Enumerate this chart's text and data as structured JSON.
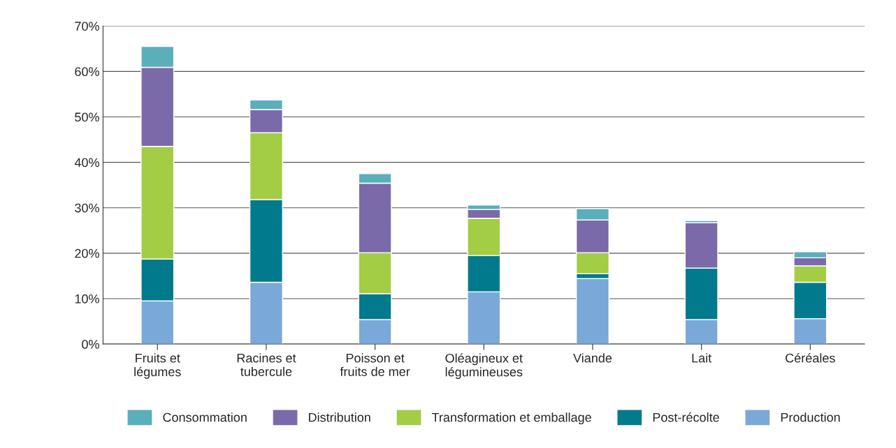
{
  "chart_data": {
    "type": "bar",
    "stacked": true,
    "categories": [
      "Fruits et\nlégumes",
      "Racines et\ntubercule",
      "Poisson et\nfruits de mer",
      "Oléagineux et\nlégumineuses",
      "Viande",
      "Lait",
      "Céréales"
    ],
    "series": [
      {
        "name": "Production",
        "color": "#7aa8d8",
        "values": [
          9.5,
          13.6,
          5.4,
          11.5,
          14.4,
          5.4,
          5.6
        ]
      },
      {
        "name": "Post-récolte",
        "color": "#007a8c",
        "values": [
          9.2,
          18.2,
          5.7,
          8.0,
          1.1,
          11.3,
          8.0
        ]
      },
      {
        "name": "Transformation et emballage",
        "color": "#a2cd44",
        "values": [
          24.8,
          14.7,
          9.0,
          8.2,
          4.6,
          0,
          3.6
        ]
      },
      {
        "name": "Distribution",
        "color": "#7b6aa9",
        "values": [
          17.4,
          5.1,
          15.3,
          1.9,
          7.2,
          10.0,
          1.8
        ]
      },
      {
        "name": "Consommation",
        "color": "#5aafbb",
        "values": [
          4.6,
          2.1,
          2.1,
          1.0,
          2.5,
          0.5,
          1.3
        ]
      }
    ],
    "ylim": [
      0,
      70
    ],
    "yticks": [
      {
        "value": 0,
        "label": "0%"
      },
      {
        "value": 10,
        "label": "10%"
      },
      {
        "value": 20,
        "label": "20%"
      },
      {
        "value": 30,
        "label": "30%"
      },
      {
        "value": 40,
        "label": "40%"
      },
      {
        "value": 50,
        "label": "50%"
      },
      {
        "value": 60,
        "label": "60%"
      },
      {
        "value": 70,
        "label": "70%"
      }
    ],
    "grid": "y",
    "legend": "bottom"
  }
}
